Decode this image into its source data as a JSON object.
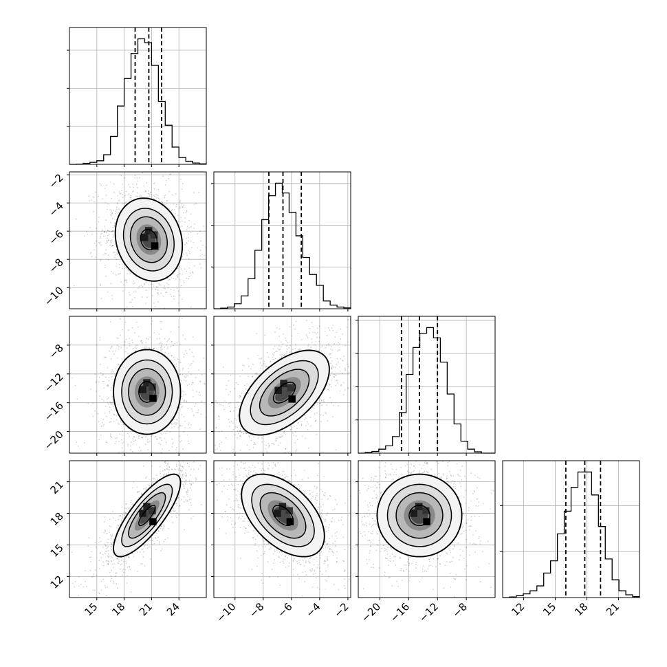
{
  "chart_data": {
    "type": "corner",
    "grid": true,
    "parameters": [
      {
        "range": [
          12,
          27
        ],
        "ticks": [
          15,
          18,
          21,
          24
        ],
        "hist": {
          "edges": [
            12.0,
            12.75,
            13.5,
            14.25,
            15.0,
            15.75,
            16.5,
            17.25,
            18.0,
            18.75,
            19.5,
            20.25,
            21.0,
            21.75,
            22.5,
            23.25,
            24.0,
            24.75,
            25.5,
            26.25,
            27.0
          ],
          "counts": [
            0,
            1,
            4,
            8,
            14,
            38,
            110,
            230,
            338,
            437,
            495,
            480,
            390,
            248,
            154,
            68,
            27,
            12,
            5,
            2
          ]
        },
        "quantiles": [
          19.2,
          20.7,
          22.1
        ]
      },
      {
        "range": [
          -11.5,
          -1.8
        ],
        "ticks": [
          -10,
          -8,
          -6,
          -4,
          -2
        ],
        "hist": {
          "edges": [
            -11.5,
            -11.015,
            -10.53,
            -10.045,
            -9.56,
            -9.075,
            -8.59,
            -8.105,
            -7.62,
            -7.135,
            -6.65,
            -6.165,
            -5.68,
            -5.195,
            -4.71,
            -4.225,
            -3.74,
            -3.255,
            -2.77,
            -2.285,
            -1.8
          ],
          "counts": [
            0,
            2,
            6,
            18,
            46,
            108,
            210,
            320,
            406,
            451,
            416,
            346,
            262,
            184,
            123,
            84,
            28,
            13,
            6,
            3
          ]
        },
        "quantiles": [
          -7.6,
          -6.6,
          -5.3
        ]
      },
      {
        "range": [
          -23,
          -4
        ],
        "ticks": [
          -20,
          -16,
          -12,
          -8
        ],
        "hist": {
          "edges": [
            -23.0,
            -22.05,
            -21.1,
            -20.15,
            -19.2,
            -18.25,
            -17.3,
            -16.35,
            -15.4,
            -14.45,
            -13.5,
            -12.55,
            -11.6,
            -10.65,
            -9.7,
            -8.75,
            -7.8,
            -6.85,
            -5.9,
            -4.95,
            -4.0
          ],
          "counts": [
            0,
            2,
            5,
            12,
            22,
            50,
            122,
            237,
            318,
            361,
            378,
            347,
            274,
            178,
            88,
            36,
            12,
            4,
            0,
            0
          ]
        },
        "quantiles": [
          -17.0,
          -14.5,
          -12.0
        ]
      },
      {
        "range": [
          10,
          23
        ],
        "ticks": [
          12,
          15,
          18,
          21
        ],
        "hist": {
          "edges": [
            10.0,
            10.65,
            11.3,
            11.95,
            12.6,
            13.25,
            13.9,
            14.55,
            15.2,
            15.85,
            16.5,
            17.15,
            17.8,
            18.45,
            19.1,
            19.75,
            20.4,
            21.05,
            21.7,
            22.35,
            23.0
          ],
          "counts": [
            0,
            2,
            6,
            12,
            22,
            38,
            80,
            120,
            208,
            282,
            360,
            410,
            410,
            335,
            232,
            126,
            58,
            22,
            9,
            3
          ]
        },
        "quantiles": [
          16.0,
          17.8,
          19.3
        ]
      }
    ],
    "pairs": [
      {
        "row": 1,
        "col": 0,
        "mean": [
          20.7,
          -6.6
        ],
        "sd": [
          1.5,
          1.2
        ],
        "rho": -0.15
      },
      {
        "row": 2,
        "col": 0,
        "mean": [
          20.5,
          -14.5
        ],
        "sd": [
          1.5,
          2.4
        ],
        "rho": 0.0
      },
      {
        "row": 2,
        "col": 1,
        "mean": [
          -6.5,
          -14.6
        ],
        "sd": [
          1.3,
          2.4
        ],
        "rho": 0.55
      },
      {
        "row": 3,
        "col": 0,
        "mean": [
          20.5,
          17.8
        ],
        "sd": [
          1.5,
          1.6
        ],
        "rho": 0.8
      },
      {
        "row": 3,
        "col": 1,
        "mean": [
          -6.6,
          17.8
        ],
        "sd": [
          1.2,
          1.6
        ],
        "rho": -0.5
      },
      {
        "row": 3,
        "col": 2,
        "mean": [
          -14.5,
          17.8
        ],
        "sd": [
          2.4,
          1.6
        ],
        "rho": 0.0
      }
    ]
  }
}
